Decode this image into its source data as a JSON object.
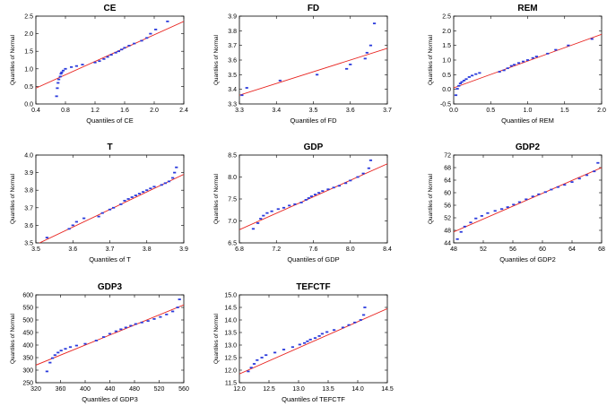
{
  "chart_data": [
    {
      "type": "scatter",
      "title": "CE",
      "xlabel": "Quantiles of CE",
      "ylabel": "Quantiles of Normal",
      "xlim": [
        0.4,
        2.4
      ],
      "ylim": [
        0.0,
        2.5
      ],
      "x_ticks": [
        "0.4",
        "0.8",
        "1.2",
        "1.6",
        "2.0",
        "2.4"
      ],
      "y_ticks": [
        "0.0",
        "0.5",
        "1.0",
        "1.5",
        "2.0",
        "2.5"
      ],
      "reference_line": [
        [
          0.4,
          0.45
        ],
        [
          2.4,
          2.35
        ]
      ],
      "points": [
        [
          0.68,
          0.22
        ],
        [
          0.69,
          0.45
        ],
        [
          0.7,
          0.6
        ],
        [
          0.71,
          0.7
        ],
        [
          0.73,
          0.78
        ],
        [
          0.74,
          0.86
        ],
        [
          0.75,
          0.9
        ],
        [
          0.77,
          0.95
        ],
        [
          0.8,
          1.0
        ],
        [
          0.88,
          1.05
        ],
        [
          0.95,
          1.08
        ],
        [
          1.03,
          1.12
        ],
        [
          1.2,
          1.18
        ],
        [
          1.26,
          1.22
        ],
        [
          1.32,
          1.28
        ],
        [
          1.37,
          1.34
        ],
        [
          1.42,
          1.4
        ],
        [
          1.48,
          1.46
        ],
        [
          1.52,
          1.5
        ],
        [
          1.56,
          1.55
        ],
        [
          1.6,
          1.6
        ],
        [
          1.66,
          1.66
        ],
        [
          1.73,
          1.72
        ],
        [
          1.83,
          1.8
        ],
        [
          1.9,
          1.88
        ],
        [
          1.95,
          2.0
        ],
        [
          2.02,
          2.12
        ],
        [
          2.18,
          2.35
        ]
      ]
    },
    {
      "type": "scatter",
      "title": "FD",
      "xlabel": "Quantiles of FD",
      "ylabel": "Quantiles of Normal",
      "xlim": [
        3.3,
        3.7
      ],
      "ylim": [
        3.3,
        3.9
      ],
      "x_ticks": [
        "3.3",
        "3.4",
        "3.5",
        "3.6",
        "3.7"
      ],
      "y_ticks": [
        "3.3",
        "3.4",
        "3.5",
        "3.6",
        "3.7",
        "3.8",
        "3.9"
      ],
      "reference_line": [
        [
          3.3,
          3.36
        ],
        [
          3.7,
          3.68
        ]
      ],
      "points": [
        [
          3.307,
          3.36
        ],
        [
          3.32,
          3.41
        ],
        [
          3.41,
          3.46
        ],
        [
          3.51,
          3.5
        ],
        [
          3.59,
          3.54
        ],
        [
          3.6,
          3.57
        ],
        [
          3.64,
          3.61
        ],
        [
          3.645,
          3.65
        ],
        [
          3.655,
          3.7
        ],
        [
          3.665,
          3.85
        ]
      ]
    },
    {
      "type": "scatter",
      "title": "REM",
      "xlabel": "Quantiles of REM",
      "ylabel": "Quantiles of Normal",
      "xlim": [
        0.0,
        2.0
      ],
      "ylim": [
        -0.5,
        2.5
      ],
      "x_ticks": [
        "0.0",
        "0.5",
        "1.0",
        "1.5",
        "2.0"
      ],
      "y_ticks": [
        "-0.5",
        "0.0",
        "0.5",
        "1.0",
        "1.5",
        "2.0",
        "2.5"
      ],
      "reference_line": [
        [
          0.0,
          0.05
        ],
        [
          2.0,
          1.88
        ]
      ],
      "points": [
        [
          0.03,
          -0.2
        ],
        [
          0.05,
          0.02
        ],
        [
          0.07,
          0.12
        ],
        [
          0.09,
          0.2
        ],
        [
          0.11,
          0.25
        ],
        [
          0.14,
          0.3
        ],
        [
          0.17,
          0.35
        ],
        [
          0.21,
          0.42
        ],
        [
          0.25,
          0.47
        ],
        [
          0.3,
          0.52
        ],
        [
          0.35,
          0.56
        ],
        [
          0.62,
          0.6
        ],
        [
          0.68,
          0.65
        ],
        [
          0.73,
          0.72
        ],
        [
          0.78,
          0.8
        ],
        [
          0.82,
          0.84
        ],
        [
          0.88,
          0.9
        ],
        [
          0.94,
          0.95
        ],
        [
          1.0,
          1.0
        ],
        [
          1.07,
          1.07
        ],
        [
          1.12,
          1.12
        ],
        [
          1.27,
          1.22
        ],
        [
          1.38,
          1.35
        ],
        [
          1.55,
          1.5
        ],
        [
          1.87,
          1.72
        ]
      ]
    },
    {
      "type": "scatter",
      "title": "T",
      "xlabel": "Quantiles of T",
      "ylabel": "Quantiles of Normal",
      "xlim": [
        3.5,
        3.9
      ],
      "ylim": [
        3.5,
        4.0
      ],
      "x_ticks": [
        "3.5",
        "3.6",
        "3.7",
        "3.8",
        "3.9"
      ],
      "y_ticks": [
        "3.5",
        "3.6",
        "3.7",
        "3.8",
        "3.9",
        "4.0"
      ],
      "reference_line": [
        [
          3.5,
          3.49
        ],
        [
          3.9,
          3.89
        ]
      ],
      "points": [
        [
          3.53,
          3.53
        ],
        [
          3.59,
          3.58
        ],
        [
          3.6,
          3.6
        ],
        [
          3.61,
          3.62
        ],
        [
          3.63,
          3.64
        ],
        [
          3.67,
          3.65
        ],
        [
          3.68,
          3.67
        ],
        [
          3.7,
          3.69
        ],
        [
          3.71,
          3.7
        ],
        [
          3.73,
          3.72
        ],
        [
          3.74,
          3.74
        ],
        [
          3.75,
          3.75
        ],
        [
          3.76,
          3.76
        ],
        [
          3.77,
          3.77
        ],
        [
          3.78,
          3.78
        ],
        [
          3.79,
          3.79
        ],
        [
          3.8,
          3.8
        ],
        [
          3.81,
          3.81
        ],
        [
          3.82,
          3.82
        ],
        [
          3.84,
          3.83
        ],
        [
          3.85,
          3.84
        ],
        [
          3.86,
          3.85
        ],
        [
          3.87,
          3.87
        ],
        [
          3.875,
          3.9
        ],
        [
          3.88,
          3.93
        ]
      ]
    },
    {
      "type": "scatter",
      "title": "GDP",
      "xlabel": "Quantiles of GDP",
      "ylabel": "Quantiles of Normal",
      "xlim": [
        6.8,
        8.4
      ],
      "ylim": [
        6.5,
        8.5
      ],
      "x_ticks": [
        "6.8",
        "7.2",
        "7.6",
        "8.0",
        "8.4"
      ],
      "y_ticks": [
        "6.5",
        "7.0",
        "7.5",
        "8.0",
        "8.5"
      ],
      "reference_line": [
        [
          6.8,
          6.8
        ],
        [
          8.4,
          8.3
        ]
      ],
      "points": [
        [
          6.95,
          6.82
        ],
        [
          7.0,
          6.95
        ],
        [
          7.03,
          7.05
        ],
        [
          7.06,
          7.12
        ],
        [
          7.1,
          7.18
        ],
        [
          7.15,
          7.22
        ],
        [
          7.22,
          7.27
        ],
        [
          7.28,
          7.3
        ],
        [
          7.34,
          7.35
        ],
        [
          7.4,
          7.38
        ],
        [
          7.47,
          7.42
        ],
        [
          7.52,
          7.48
        ],
        [
          7.55,
          7.52
        ],
        [
          7.58,
          7.56
        ],
        [
          7.62,
          7.6
        ],
        [
          7.66,
          7.64
        ],
        [
          7.7,
          7.68
        ],
        [
          7.76,
          7.72
        ],
        [
          7.82,
          7.76
        ],
        [
          7.88,
          7.8
        ],
        [
          7.95,
          7.86
        ],
        [
          8.0,
          7.92
        ],
        [
          8.08,
          8.0
        ],
        [
          8.14,
          8.08
        ],
        [
          8.2,
          8.2
        ],
        [
          8.22,
          8.38
        ]
      ]
    },
    {
      "type": "scatter",
      "title": "GDP2",
      "xlabel": "Quantiles of GDP2",
      "ylabel": "Quantiles of Normal",
      "xlim": [
        48,
        68
      ],
      "ylim": [
        44,
        72
      ],
      "x_ticks": [
        "48",
        "52",
        "56",
        "60",
        "64",
        "68"
      ],
      "y_ticks": [
        "44",
        "48",
        "52",
        "56",
        "60",
        "64",
        "68",
        "72"
      ],
      "reference_line": [
        [
          48,
          47.5
        ],
        [
          68,
          68
        ]
      ],
      "points": [
        [
          48.5,
          45.2
        ],
        [
          49.0,
          47.5
        ],
        [
          49.5,
          49.2
        ],
        [
          50.3,
          50.5
        ],
        [
          51.0,
          51.8
        ],
        [
          51.8,
          52.6
        ],
        [
          52.6,
          53.5
        ],
        [
          53.6,
          54.2
        ],
        [
          54.5,
          54.8
        ],
        [
          55.3,
          55.4
        ],
        [
          56.1,
          56.2
        ],
        [
          56.9,
          57.0
        ],
        [
          57.8,
          57.9
        ],
        [
          58.7,
          58.8
        ],
        [
          59.5,
          59.5
        ],
        [
          60.4,
          60.2
        ],
        [
          61.2,
          61.0
        ],
        [
          62.1,
          61.8
        ],
        [
          63.0,
          62.5
        ],
        [
          64.0,
          63.4
        ],
        [
          65.0,
          64.5
        ],
        [
          66.0,
          65.6
        ],
        [
          67.0,
          66.8
        ],
        [
          67.5,
          69.5
        ]
      ]
    },
    {
      "type": "scatter",
      "title": "GDP3",
      "xlabel": "Quantiles of GDP3",
      "ylabel": "Quantiles of Normal",
      "xlim": [
        320,
        560
      ],
      "ylim": [
        250,
        600
      ],
      "x_ticks": [
        "320",
        "360",
        "400",
        "440",
        "480",
        "520",
        "560"
      ],
      "y_ticks": [
        "250",
        "300",
        "350",
        "400",
        "450",
        "500",
        "550",
        "600"
      ],
      "reference_line": [
        [
          320,
          320
        ],
        [
          560,
          560
        ]
      ],
      "points": [
        [
          338,
          295
        ],
        [
          343,
          330
        ],
        [
          347,
          348
        ],
        [
          351,
          360
        ],
        [
          356,
          370
        ],
        [
          361,
          378
        ],
        [
          368,
          385
        ],
        [
          376,
          392
        ],
        [
          386,
          398
        ],
        [
          400,
          405
        ],
        [
          418,
          418
        ],
        [
          430,
          432
        ],
        [
          440,
          445
        ],
        [
          450,
          455
        ],
        [
          458,
          463
        ],
        [
          466,
          470
        ],
        [
          474,
          477
        ],
        [
          482,
          484
        ],
        [
          492,
          490
        ],
        [
          502,
          496
        ],
        [
          512,
          504
        ],
        [
          522,
          512
        ],
        [
          532,
          522
        ],
        [
          542,
          534
        ],
        [
          550,
          550
        ],
        [
          553,
          582
        ]
      ]
    },
    {
      "type": "scatter",
      "title": "TEFCTF",
      "xlabel": "Quantiles of TEFCTF",
      "ylabel": "Quantiles of Normal",
      "xlim": [
        12.0,
        14.5
      ],
      "ylim": [
        11.5,
        15.0
      ],
      "x_ticks": [
        "12.0",
        "12.5",
        "13.0",
        "13.5",
        "14.0",
        "14.5"
      ],
      "y_ticks": [
        "11.5",
        "12.0",
        "12.5",
        "13.0",
        "13.5",
        "14.0",
        "14.5",
        "15.0"
      ],
      "reference_line": [
        [
          12.0,
          11.85
        ],
        [
          14.5,
          14.45
        ]
      ],
      "points": [
        [
          12.15,
          11.95
        ],
        [
          12.2,
          12.1
        ],
        [
          12.25,
          12.25
        ],
        [
          12.3,
          12.4
        ],
        [
          12.38,
          12.5
        ],
        [
          12.45,
          12.6
        ],
        [
          12.6,
          12.7
        ],
        [
          12.75,
          12.82
        ],
        [
          12.9,
          12.92
        ],
        [
          13.02,
          13.02
        ],
        [
          13.1,
          13.08
        ],
        [
          13.15,
          13.15
        ],
        [
          13.2,
          13.22
        ],
        [
          13.28,
          13.28
        ],
        [
          13.35,
          13.36
        ],
        [
          13.4,
          13.45
        ],
        [
          13.48,
          13.52
        ],
        [
          13.6,
          13.6
        ],
        [
          13.75,
          13.7
        ],
        [
          13.85,
          13.8
        ],
        [
          13.95,
          13.9
        ],
        [
          14.05,
          14.0
        ],
        [
          14.1,
          14.2
        ],
        [
          14.12,
          14.5
        ]
      ]
    }
  ]
}
